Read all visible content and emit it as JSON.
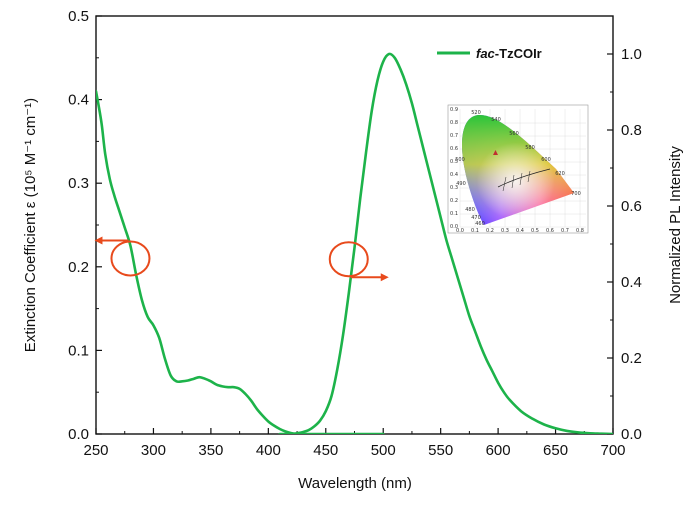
{
  "chart_data": {
    "type": "line",
    "xlabel": "Wavelength (nm)",
    "ylabel_left": "Extinction Coefficient ε (10⁵ M⁻¹ cm⁻¹)",
    "ylabel_right": "Normalized PL Intensity",
    "xlim": [
      250,
      700
    ],
    "ylim_left": [
      0,
      0.5
    ],
    "ylim_right": [
      0,
      1.1
    ],
    "x_ticks": [
      250,
      300,
      350,
      400,
      450,
      500,
      550,
      600,
      650,
      700
    ],
    "y_left_ticks": [
      0.0,
      0.1,
      0.2,
      0.3,
      0.4,
      0.5
    ],
    "y_right_ticks": [
      0.0,
      0.2,
      0.4,
      0.6,
      0.8,
      1.0
    ],
    "legend": {
      "position": "top-right",
      "entries": [
        {
          "prefix": "fac",
          "suffix": "-TzCOIr",
          "color": "#1db34a"
        }
      ]
    },
    "series": [
      {
        "name": "fac-TzCOIr",
        "axis": "left",
        "color": "#1db34a",
        "x": [
          250,
          252,
          255,
          258,
          262,
          266,
          270,
          275,
          280,
          285,
          290,
          295,
          300,
          305,
          310,
          315,
          320,
          325,
          330,
          335,
          340,
          345,
          350,
          355,
          360,
          365,
          370,
          375,
          380,
          385,
          390,
          395,
          400,
          405,
          410,
          415,
          420,
          425,
          430,
          440,
          450,
          460,
          470,
          480,
          490,
          500
        ],
        "y": [
          0.41,
          0.395,
          0.37,
          0.335,
          0.305,
          0.285,
          0.268,
          0.247,
          0.225,
          0.19,
          0.16,
          0.14,
          0.13,
          0.115,
          0.09,
          0.07,
          0.063,
          0.063,
          0.064,
          0.066,
          0.068,
          0.066,
          0.063,
          0.059,
          0.057,
          0.056,
          0.056,
          0.054,
          0.048,
          0.04,
          0.03,
          0.022,
          0.015,
          0.01,
          0.006,
          0.003,
          0.001,
          0.0,
          0.0,
          0.0,
          0.0,
          0.0,
          0.0,
          0.0,
          0.0,
          0.0
        ]
      },
      {
        "name": "fac-TzCOIr",
        "axis": "right",
        "color": "#1db34a",
        "x": [
          410,
          415,
          420,
          425,
          430,
          435,
          440,
          445,
          450,
          455,
          460,
          465,
          470,
          475,
          480,
          485,
          490,
          495,
          500,
          505,
          510,
          515,
          520,
          525,
          530,
          535,
          540,
          545,
          550,
          555,
          560,
          565,
          570,
          575,
          580,
          585,
          590,
          595,
          600,
          605,
          610,
          620,
          630,
          640,
          650,
          660,
          670,
          680,
          690,
          700
        ],
        "y": [
          0.0,
          0.0,
          0.0,
          0.002,
          0.005,
          0.01,
          0.02,
          0.035,
          0.06,
          0.1,
          0.17,
          0.26,
          0.37,
          0.49,
          0.62,
          0.74,
          0.85,
          0.93,
          0.98,
          1.0,
          0.99,
          0.96,
          0.92,
          0.87,
          0.81,
          0.75,
          0.69,
          0.63,
          0.57,
          0.51,
          0.46,
          0.41,
          0.36,
          0.31,
          0.27,
          0.23,
          0.195,
          0.165,
          0.135,
          0.11,
          0.09,
          0.06,
          0.04,
          0.025,
          0.015,
          0.008,
          0.004,
          0.002,
          0.001,
          0.0
        ]
      }
    ],
    "annotations": [
      {
        "kind": "circle-arrow",
        "points_to": "left-axis",
        "at": {
          "x": 280,
          "y": 0.21,
          "axis": "left"
        },
        "color": "#e84a1c"
      },
      {
        "kind": "circle-arrow",
        "points_to": "right-axis",
        "at": {
          "x": 470,
          "y": 0.46,
          "axis": "right"
        },
        "color": "#e84a1c"
      }
    ],
    "inset": {
      "type": "CIE 1931 chromaticity diagram",
      "x_ticks": [
        "0.0",
        "0.1",
        "0.2",
        "0.3",
        "0.4",
        "0.5",
        "0.6",
        "0.7",
        "0.8"
      ],
      "y_ticks": [
        "0.0",
        "0.1",
        "0.2",
        "0.3",
        "0.4",
        "0.5",
        "0.6",
        "0.7",
        "0.8",
        "0.9"
      ],
      "wavelength_labels": [
        "520",
        "540",
        "560",
        "580",
        "600",
        "620",
        "700",
        "500",
        "490",
        "480",
        "470",
        "460"
      ]
    }
  }
}
